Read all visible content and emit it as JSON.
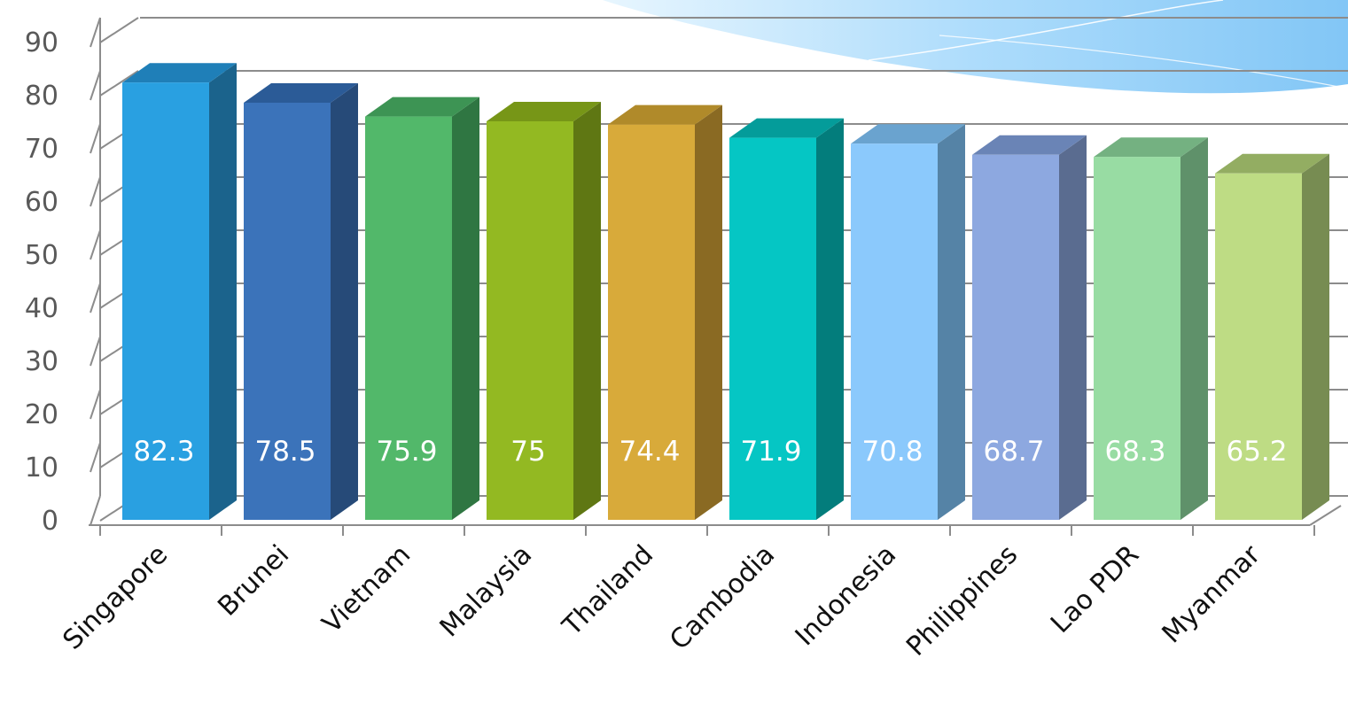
{
  "chart_data": {
    "type": "bar",
    "categories": [
      "Singapore",
      "Brunei",
      "Vietnam",
      "Malaysia",
      "Thailand",
      "Cambodia",
      "Indonesia",
      "Philippines",
      "Lao PDR",
      "Myanmar"
    ],
    "values": [
      82.3,
      78.5,
      75.9,
      75,
      74.4,
      71.9,
      70.8,
      68.7,
      68.3,
      65.2
    ],
    "value_labels": [
      "82.3",
      "78.5",
      "75.9",
      "75",
      "74.4",
      "71.9",
      "70.8",
      "68.7",
      "68.3",
      "65.2"
    ],
    "yticks": [
      0,
      10,
      20,
      30,
      40,
      50,
      60,
      70,
      80,
      90
    ],
    "ylim": [
      0,
      90
    ],
    "grid": true,
    "legend": "none",
    "style": "3d-column",
    "title": "",
    "xlabel": "",
    "ylabel": "",
    "colors": {
      "front": [
        "#29a0e1",
        "#3b73ba",
        "#52b86a",
        "#93b922",
        "#d8aa3a",
        "#05c6c4",
        "#8bc9fc",
        "#8da8e0",
        "#98dca3",
        "#bedc84"
      ],
      "side": [
        "#1b638c",
        "#264a78",
        "#2f7642",
        "#5f7713",
        "#8a6a23",
        "#037d7c",
        "#5583a6",
        "#5a6c90",
        "#5f916a",
        "#778c52"
      ],
      "top": [
        "#1f7fb8",
        "#2b5b97",
        "#3d9454",
        "#779617",
        "#b08a2a",
        "#049c9a",
        "#6aa3cf",
        "#6a84b6",
        "#74b181",
        "#93ad62"
      ],
      "grid": "#8c8c8c",
      "axis": "#8c8c8c",
      "tick_text": "#595959"
    }
  }
}
